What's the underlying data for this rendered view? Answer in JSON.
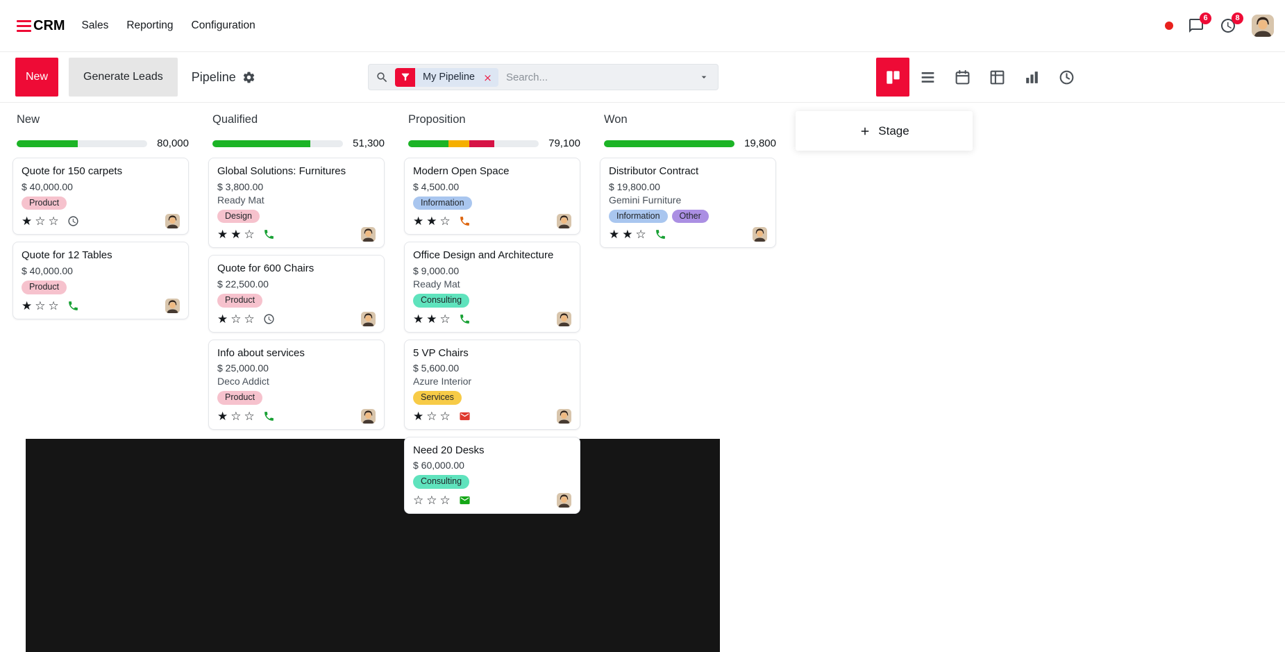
{
  "colors": {
    "accent": "#ee0b36",
    "progress_green": "#1cb426",
    "progress_yellow": "#f5af00",
    "progress_red": "#d61345",
    "progress_empty": "#e9ecef",
    "tag_pink_bg": "#f6c2cd",
    "tag_blue_bg": "#a9c6ef",
    "tag_teal_bg": "#5fe3bd",
    "tag_yellow_bg": "#f7cb47",
    "tag_purple_bg": "#ab8fe3",
    "tag_text": "#212529",
    "icon_gray": "#495057"
  },
  "navbar": {
    "brand": "CRM",
    "menu": [
      {
        "id": "sales",
        "label": "Sales"
      },
      {
        "id": "reporting",
        "label": "Reporting"
      },
      {
        "id": "configuration",
        "label": "Configuration"
      }
    ],
    "systray": {
      "messages_badge": "6",
      "activities_badge": "8"
    }
  },
  "control_panel": {
    "new_button": "New",
    "generate_leads_button": "Generate Leads",
    "title": "Pipeline",
    "search": {
      "facet_label": "My Pipeline",
      "placeholder": "Search..."
    },
    "view_switcher": [
      {
        "name": "kanban",
        "active": true
      },
      {
        "name": "list",
        "active": false
      },
      {
        "name": "calendar",
        "active": false
      },
      {
        "name": "pivot",
        "active": false
      },
      {
        "name": "graph",
        "active": false
      },
      {
        "name": "activity",
        "active": false
      }
    ]
  },
  "board": {
    "stage_adder": "Stage",
    "columns": [
      {
        "name": "New",
        "total": "80,000",
        "progress": [
          {
            "color": "green",
            "pct": 47
          }
        ],
        "cards": [
          {
            "title": "Quote for 150 carpets",
            "amount": "$ 40,000.00",
            "partner": "",
            "tags": [
              {
                "label": "Product",
                "color": "pink"
              }
            ],
            "stars_filled": 1,
            "stars_total": 3,
            "activity_icon": {
              "type": "clock",
              "color": "#495057"
            }
          },
          {
            "title": "Quote for 12 Tables",
            "amount": "$ 40,000.00",
            "partner": "",
            "tags": [
              {
                "label": "Product",
                "color": "pink"
              }
            ],
            "stars_filled": 1,
            "stars_total": 3,
            "activity_icon": {
              "type": "phone",
              "color": "#18a034"
            }
          }
        ]
      },
      {
        "name": "Qualified",
        "total": "51,300",
        "progress": [
          {
            "color": "green",
            "pct": 75
          }
        ],
        "cards": [
          {
            "title": "Global Solutions: Furnitures",
            "amount": "$ 3,800.00",
            "partner": "Ready Mat",
            "tags": [
              {
                "label": "Design",
                "color": "pink"
              }
            ],
            "stars_filled": 2,
            "stars_total": 3,
            "activity_icon": {
              "type": "phone",
              "color": "#18a034"
            }
          },
          {
            "title": "Quote for 600 Chairs",
            "amount": "$ 22,500.00",
            "partner": "",
            "tags": [
              {
                "label": "Product",
                "color": "pink"
              }
            ],
            "stars_filled": 1,
            "stars_total": 3,
            "activity_icon": {
              "type": "clock",
              "color": "#495057"
            }
          },
          {
            "title": "Info about services",
            "amount": "$ 25,000.00",
            "partner": "Deco Addict",
            "tags": [
              {
                "label": "Product",
                "color": "pink"
              }
            ],
            "stars_filled": 1,
            "stars_total": 3,
            "activity_icon": {
              "type": "phone",
              "color": "#18a034"
            }
          }
        ]
      },
      {
        "name": "Proposition",
        "total": "79,100",
        "progress": [
          {
            "color": "green",
            "pct": 31
          },
          {
            "color": "yellow",
            "pct": 16
          },
          {
            "color": "red",
            "pct": 19
          }
        ],
        "cards": [
          {
            "title": "Modern Open Space",
            "amount": "$ 4,500.00",
            "partner": "",
            "tags": [
              {
                "label": "Information",
                "color": "blue"
              }
            ],
            "stars_filled": 2,
            "stars_total": 3,
            "activity_icon": {
              "type": "phone",
              "color": "#dd650f"
            }
          },
          {
            "title": "Office Design and Architecture",
            "amount": "$ 9,000.00",
            "partner": "Ready Mat",
            "tags": [
              {
                "label": "Consulting",
                "color": "teal"
              }
            ],
            "stars_filled": 2,
            "stars_total": 3,
            "activity_icon": {
              "type": "phone",
              "color": "#18a034"
            }
          },
          {
            "title": "5 VP Chairs",
            "amount": "$ 5,600.00",
            "partner": "Azure Interior",
            "tags": [
              {
                "label": "Services",
                "color": "yellow"
              }
            ],
            "stars_filled": 1,
            "stars_total": 3,
            "activity_icon": {
              "type": "envelope",
              "color": "#df3a2e"
            }
          },
          {
            "title": "Need 20 Desks",
            "amount": "$ 60,000.00",
            "partner": "",
            "tags": [
              {
                "label": "Consulting",
                "color": "teal"
              }
            ],
            "stars_filled": 0,
            "stars_total": 3,
            "activity_icon": {
              "type": "envelope",
              "color": "#14a716"
            }
          }
        ]
      },
      {
        "name": "Won",
        "total": "19,800",
        "progress": [
          {
            "color": "green",
            "pct": 100
          }
        ],
        "cards": [
          {
            "title": "Distributor Contract",
            "amount": "$ 19,800.00",
            "partner": "Gemini Furniture",
            "tags": [
              {
                "label": "Information",
                "color": "blue"
              },
              {
                "label": "Other",
                "color": "purple"
              }
            ],
            "stars_filled": 2,
            "stars_total": 3,
            "activity_icon": {
              "type": "phone",
              "color": "#18a034"
            }
          }
        ]
      }
    ]
  }
}
